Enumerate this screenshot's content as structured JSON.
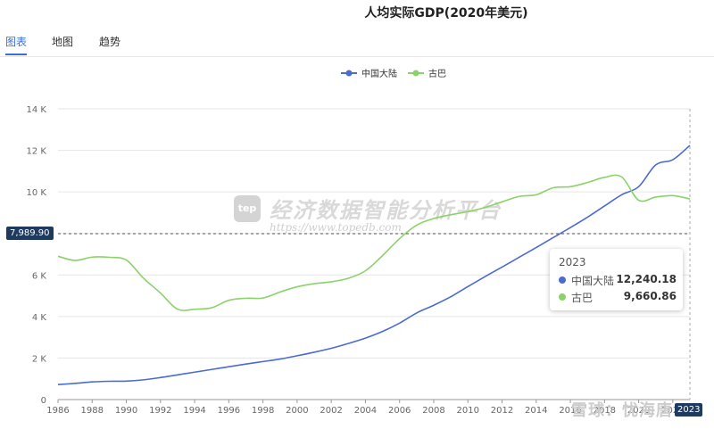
{
  "page": {
    "title": "人均实际GDP(2020年美元)"
  },
  "tabs": [
    {
      "label": "图表",
      "active": true
    },
    {
      "label": "地图",
      "active": false
    },
    {
      "label": "趋势",
      "active": false
    }
  ],
  "watermark": {
    "logo_text": "tep",
    "title": "经济数据智能分析平台",
    "url": "https://www.topedb.com"
  },
  "crosshair": {
    "y_label": "7,989.90",
    "x_label": "2023"
  },
  "tooltip": {
    "year": "2023",
    "rows": [
      {
        "name": "中国大陆",
        "value": "12,240.18",
        "color": "#4b6bd1"
      },
      {
        "name": "古巴",
        "value": "9,660.86",
        "color": "#8bd26a"
      }
    ]
  },
  "corner_watermark": "雪球：忧海唐",
  "chart_data": {
    "type": "line",
    "title": "人均实际GDP(2020年美元)",
    "xlabel": "",
    "ylabel": "",
    "ylim": [
      0,
      14000
    ],
    "yticks": [
      0,
      2000,
      4000,
      6000,
      8000,
      10000,
      12000,
      14000
    ],
    "ytick_labels": [
      "0",
      "2 K",
      "4 K",
      "6 K",
      "8 K",
      "10 K",
      "12 K",
      "14 K"
    ],
    "xlim": [
      1986,
      2023
    ],
    "xticks": [
      "1986",
      "1988",
      "1990",
      "1992",
      "1994",
      "1996",
      "1998",
      "2000",
      "2002",
      "2004",
      "2006",
      "2008",
      "2010",
      "2012",
      "2014",
      "2016",
      "2018",
      "2020",
      "2022"
    ],
    "x": [
      1986,
      1987,
      1988,
      1989,
      1990,
      1991,
      1992,
      1993,
      1994,
      1995,
      1996,
      1997,
      1998,
      1999,
      2000,
      2001,
      2002,
      2003,
      2004,
      2005,
      2006,
      2007,
      2008,
      2009,
      2010,
      2011,
      2012,
      2013,
      2014,
      2015,
      2016,
      2017,
      2018,
      2019,
      2020,
      2021,
      2022,
      2023
    ],
    "grid": true,
    "legend_position": "top-center",
    "series": [
      {
        "name": "中国大陆",
        "color": "#4b6bd1",
        "values": [
          720,
          780,
          850,
          880,
          890,
          950,
          1060,
          1190,
          1320,
          1450,
          1580,
          1710,
          1830,
          1950,
          2110,
          2280,
          2470,
          2700,
          2960,
          3280,
          3680,
          4170,
          4540,
          4950,
          5440,
          5920,
          6380,
          6850,
          7320,
          7800,
          8280,
          8780,
          9320,
          9860,
          10250,
          11300,
          11550,
          12240
        ]
      },
      {
        "name": "古巴",
        "color": "#8bd26a",
        "values": [
          6900,
          6700,
          6860,
          6850,
          6720,
          5850,
          5130,
          4350,
          4350,
          4420,
          4780,
          4880,
          4890,
          5180,
          5430,
          5580,
          5670,
          5840,
          6200,
          6930,
          7750,
          8400,
          8720,
          8900,
          9050,
          9250,
          9520,
          9780,
          9860,
          10200,
          10250,
          10450,
          10700,
          10720,
          9600,
          9750,
          9820,
          9660
        ]
      }
    ]
  }
}
